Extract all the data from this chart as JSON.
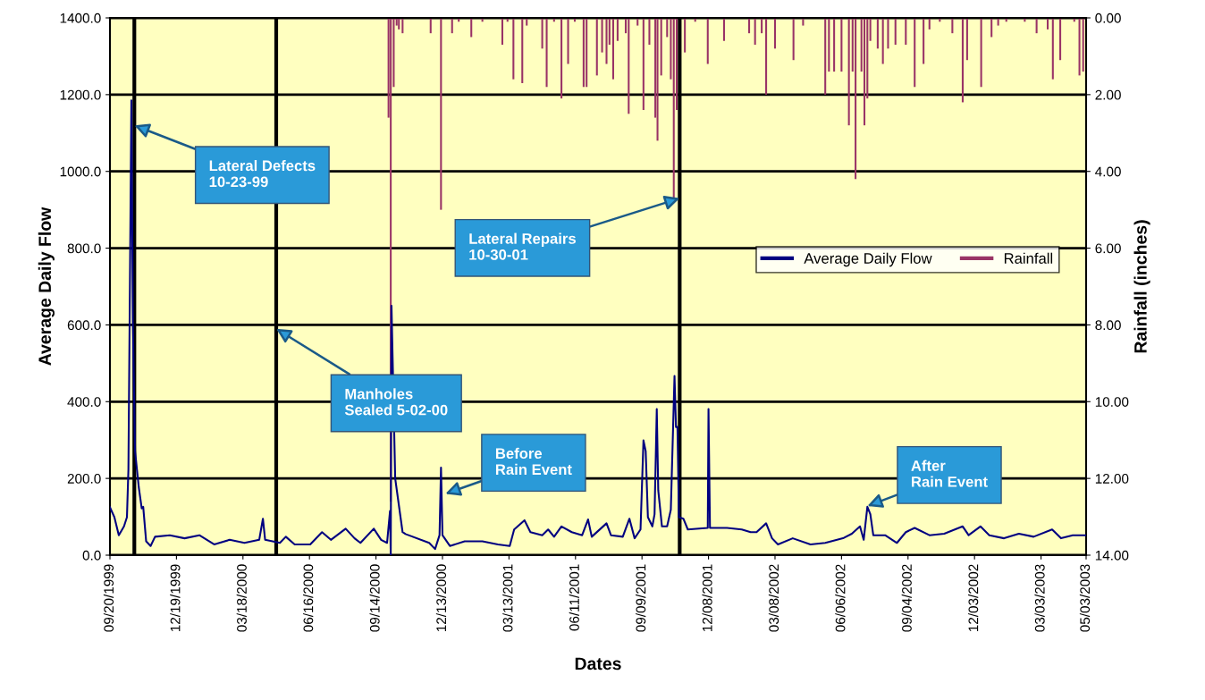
{
  "chart_data": {
    "type": "line",
    "xlabel": "Dates",
    "ylabel": "Average Daily Flow",
    "y2label": "Rainfall (inches)",
    "series": [
      {
        "name": "Average Daily Flow",
        "color": "#000080",
        "x": [
          "1999-09-20",
          "1999-09-26",
          "1999-10-02",
          "1999-10-09",
          "1999-10-13",
          "1999-10-15",
          "1999-10-17",
          "1999-10-19",
          "1999-10-21",
          "1999-10-24",
          "1999-10-29",
          "1999-11-02",
          "1999-11-04",
          "1999-11-08",
          "1999-11-14",
          "1999-11-20",
          "1999-12-10",
          "1999-12-30",
          "2000-01-19",
          "2000-02-08",
          "2000-02-29",
          "2000-03-20",
          "2000-04-09",
          "2000-04-14",
          "2000-04-17",
          "2000-05-07",
          "2000-05-15",
          "2000-05-27",
          "2000-06-17",
          "2000-07-03",
          "2000-07-15",
          "2000-08-04",
          "2000-08-16",
          "2000-08-24",
          "2000-09-11",
          "2000-09-21",
          "2000-09-29",
          "2000-10-03",
          "2000-10-04",
          "2000-10-05",
          "2000-10-10",
          "2000-10-20",
          "2000-10-24",
          "2000-11-25",
          "2000-12-03",
          "2000-12-09",
          "2000-12-11",
          "2000-12-13",
          "2000-12-23",
          "2001-01-12",
          "2001-02-05",
          "2001-02-26",
          "2001-03-14",
          "2001-03-20",
          "2001-04-03",
          "2001-04-11",
          "2001-04-27",
          "2001-05-05",
          "2001-05-13",
          "2001-05-23",
          "2001-06-06",
          "2001-06-20",
          "2001-06-28",
          "2001-07-03",
          "2001-07-23",
          "2001-07-29",
          "2001-08-14",
          "2001-08-23",
          "2001-08-30",
          "2001-09-07",
          "2001-09-11",
          "2001-09-14",
          "2001-09-17",
          "2001-09-23",
          "2001-09-26",
          "2001-09-29",
          "2001-10-01",
          "2001-10-06",
          "2001-10-13",
          "2001-10-18",
          "2001-10-23",
          "2001-10-25",
          "2001-10-27",
          "2001-10-29",
          "2001-11-04",
          "2001-11-10",
          "2001-12-07",
          "2001-12-08",
          "2001-12-10",
          "2002-01-02",
          "2002-01-22",
          "2002-02-03",
          "2002-02-11",
          "2002-02-24",
          "2002-03-04",
          "2002-03-12",
          "2002-04-01",
          "2002-04-25",
          "2002-05-15",
          "2002-06-08",
          "2002-06-20",
          "2002-07-01",
          "2002-07-06",
          "2002-07-11",
          "2002-07-15",
          "2002-07-19",
          "2002-08-04",
          "2002-08-20",
          "2002-09-01",
          "2002-09-13",
          "2002-10-03",
          "2002-10-23",
          "2002-11-17",
          "2002-11-25",
          "2002-12-11",
          "2002-12-23",
          "2003-01-12",
          "2003-02-01",
          "2003-02-21",
          "2003-03-18",
          "2003-03-30",
          "2003-04-15",
          "2003-05-03"
        ],
        "values": [
          125,
          99,
          52,
          75,
          99,
          224,
          700,
          1185,
          600,
          271,
          177,
          122,
          126,
          36,
          24,
          48,
          52,
          44,
          52,
          28,
          40,
          32,
          40,
          95,
          40,
          32,
          48,
          28,
          28,
          60,
          40,
          69,
          44,
          32,
          69,
          40,
          32,
          115,
          0,
          650,
          200,
          60,
          55,
          32,
          16,
          52,
          228,
          52,
          24,
          36,
          36,
          28,
          24,
          67,
          91,
          60,
          52,
          67,
          48,
          75,
          60,
          52,
          93,
          48,
          83,
          52,
          48,
          95,
          44,
          67,
          299,
          271,
          99,
          75,
          107,
          381,
          169,
          75,
          75,
          118,
          467,
          334,
          334,
          99,
          95,
          67,
          71,
          381,
          71,
          71,
          67,
          60,
          60,
          83,
          44,
          28,
          44,
          28,
          32,
          44,
          56,
          75,
          40,
          126,
          107,
          52,
          52,
          32,
          60,
          71,
          52,
          56,
          75,
          52,
          75,
          52,
          44,
          56,
          48,
          67,
          44,
          52,
          52
        ]
      },
      {
        "name": "Rainfall",
        "color": "#993366",
        "type": "bar",
        "axis": "y2",
        "x": [
          "2000-10-01",
          "2000-10-04",
          "2000-10-08",
          "2000-10-12",
          "2000-10-15",
          "2000-10-20",
          "2000-11-27",
          "2000-12-11",
          "2000-12-26",
          "2001-01-04",
          "2001-01-21",
          "2001-02-05",
          "2001-03-04",
          "2001-03-11",
          "2001-03-19",
          "2001-03-31",
          "2001-04-06",
          "2001-04-27",
          "2001-05-03",
          "2001-05-13",
          "2001-05-23",
          "2001-06-01",
          "2001-06-10",
          "2001-06-22",
          "2001-06-26",
          "2001-07-10",
          "2001-07-17",
          "2001-07-23",
          "2001-07-27",
          "2001-08-01",
          "2001-08-07",
          "2001-08-18",
          "2001-08-22",
          "2001-09-03",
          "2001-09-11",
          "2001-09-19",
          "2001-09-27",
          "2001-09-30",
          "2001-10-05",
          "2001-10-13",
          "2001-10-18",
          "2001-10-22",
          "2001-10-26",
          "2001-11-06",
          "2001-11-20",
          "2001-12-07",
          "2001-12-29",
          "2002-02-01",
          "2002-02-09",
          "2002-02-18",
          "2002-02-24",
          "2002-03-08",
          "2002-04-02",
          "2002-04-15",
          "2002-05-15",
          "2002-05-20",
          "2002-05-27",
          "2002-06-06",
          "2002-06-16",
          "2002-06-21",
          "2002-06-25",
          "2002-07-03",
          "2002-07-07",
          "2002-07-11",
          "2002-07-15",
          "2002-07-25",
          "2002-08-01",
          "2002-08-08",
          "2002-08-18",
          "2002-09-01",
          "2002-09-13",
          "2002-09-25",
          "2002-10-03",
          "2002-10-17",
          "2002-11-03",
          "2002-11-17",
          "2002-11-23",
          "2002-12-12",
          "2002-12-26",
          "2003-01-04",
          "2003-01-15",
          "2003-02-09",
          "2003-02-25",
          "2003-03-12",
          "2003-03-19",
          "2003-03-29",
          "2003-04-17",
          "2003-04-24",
          "2003-04-29"
        ],
        "values": [
          2.6,
          12.6,
          1.8,
          0.2,
          0.3,
          0.4,
          0.4,
          5.0,
          0.4,
          0.1,
          0.5,
          0.1,
          0.7,
          0.1,
          1.6,
          1.7,
          0.2,
          0.8,
          1.8,
          0.1,
          2.1,
          1.2,
          0.1,
          1.8,
          1.8,
          1.5,
          0.9,
          1.2,
          0.7,
          1.6,
          0.6,
          0.4,
          2.5,
          0.2,
          2.4,
          0.7,
          2.6,
          3.2,
          1.5,
          0.5,
          1.6,
          4.7,
          2.4,
          0.9,
          0.1,
          1.2,
          0.6,
          0.4,
          0.7,
          0.4,
          2.0,
          0.8,
          1.1,
          0.2,
          2.0,
          1.4,
          1.4,
          1.4,
          2.8,
          1.4,
          4.2,
          1.4,
          2.8,
          2.1,
          0.6,
          0.8,
          1.2,
          0.8,
          0.7,
          0.7,
          1.8,
          1.2,
          0.3,
          0.1,
          0.4,
          2.2,
          1.1,
          1.8,
          0.5,
          0.2,
          0.1,
          0.1,
          0.4,
          0.3,
          1.6,
          1.1,
          0.1,
          1.5,
          1.4
        ]
      }
    ],
    "xlim": [
      "1999-09-20",
      "2003-05-03"
    ],
    "xticks": [
      {
        "value": "1999-09-20",
        "label": "09/20/1999"
      },
      {
        "value": "1999-12-19",
        "label": "12/19/1999"
      },
      {
        "value": "2000-03-18",
        "label": "03/18/2000"
      },
      {
        "value": "2000-06-16",
        "label": "06/16/2000"
      },
      {
        "value": "2000-09-14",
        "label": "09/14/2000"
      },
      {
        "value": "2000-12-13",
        "label": "12/13/2000"
      },
      {
        "value": "2001-03-13",
        "label": "03/13/2001"
      },
      {
        "value": "2001-06-11",
        "label": "06/11/2001"
      },
      {
        "value": "2001-09-09",
        "label": "09/09/2001"
      },
      {
        "value": "2001-12-08",
        "label": "12/08/2001"
      },
      {
        "value": "2002-03-08",
        "label": "03/08/2002"
      },
      {
        "value": "2002-06-06",
        "label": "06/06/2002"
      },
      {
        "value": "2002-09-04",
        "label": "09/04/2002"
      },
      {
        "value": "2002-12-03",
        "label": "12/03/2002"
      },
      {
        "value": "2003-03-03",
        "label": "03/03/2003"
      },
      {
        "value": "2003-05-03",
        "label": "05/03/2003"
      }
    ],
    "ylim": [
      0,
      1400
    ],
    "yticks": [
      {
        "value": 0,
        "label": "0.0"
      },
      {
        "value": 200,
        "label": "200.0"
      },
      {
        "value": 400,
        "label": "400.0"
      },
      {
        "value": 600,
        "label": "600.0"
      },
      {
        "value": 800,
        "label": "800.0"
      },
      {
        "value": 1000,
        "label": "1000.0"
      },
      {
        "value": 1200,
        "label": "1200.0"
      },
      {
        "value": 1400,
        "label": "1400.0"
      }
    ],
    "y2lim": [
      14,
      0
    ],
    "y2ticks": [
      {
        "value": 0,
        "label": "0.00"
      },
      {
        "value": 2,
        "label": "2.00"
      },
      {
        "value": 4,
        "label": "4.00"
      },
      {
        "value": 6,
        "label": "6.00"
      },
      {
        "value": 8,
        "label": "8.00"
      },
      {
        "value": 10,
        "label": "10.00"
      },
      {
        "value": 12,
        "label": "12.00"
      },
      {
        "value": 14,
        "label": "14.00"
      }
    ],
    "ref_lines": [
      {
        "axis": "x",
        "value": "1999-10-23",
        "color": "#000000"
      },
      {
        "axis": "x",
        "value": "2000-05-02",
        "color": "#000000"
      },
      {
        "axis": "x",
        "value": "2001-10-30",
        "color": "#000000"
      }
    ],
    "annotations": [
      {
        "text": "Lateral Defects\n10-23-99",
        "x": "1999-10-23",
        "y": 1120
      },
      {
        "text": "Manholes\nSealed 5-02-00",
        "x": "2000-05-02",
        "y": 590
      },
      {
        "text": "Lateral Repairs\n10-30-01",
        "x": "2001-10-30",
        "y": 930
      },
      {
        "text": "Before\nRain Event",
        "x": "2000-12-17",
        "y": 160
      },
      {
        "text": "After\nRain Event",
        "x": "2002-07-11",
        "y": 128
      }
    ],
    "grid": "y",
    "legend": "right"
  }
}
